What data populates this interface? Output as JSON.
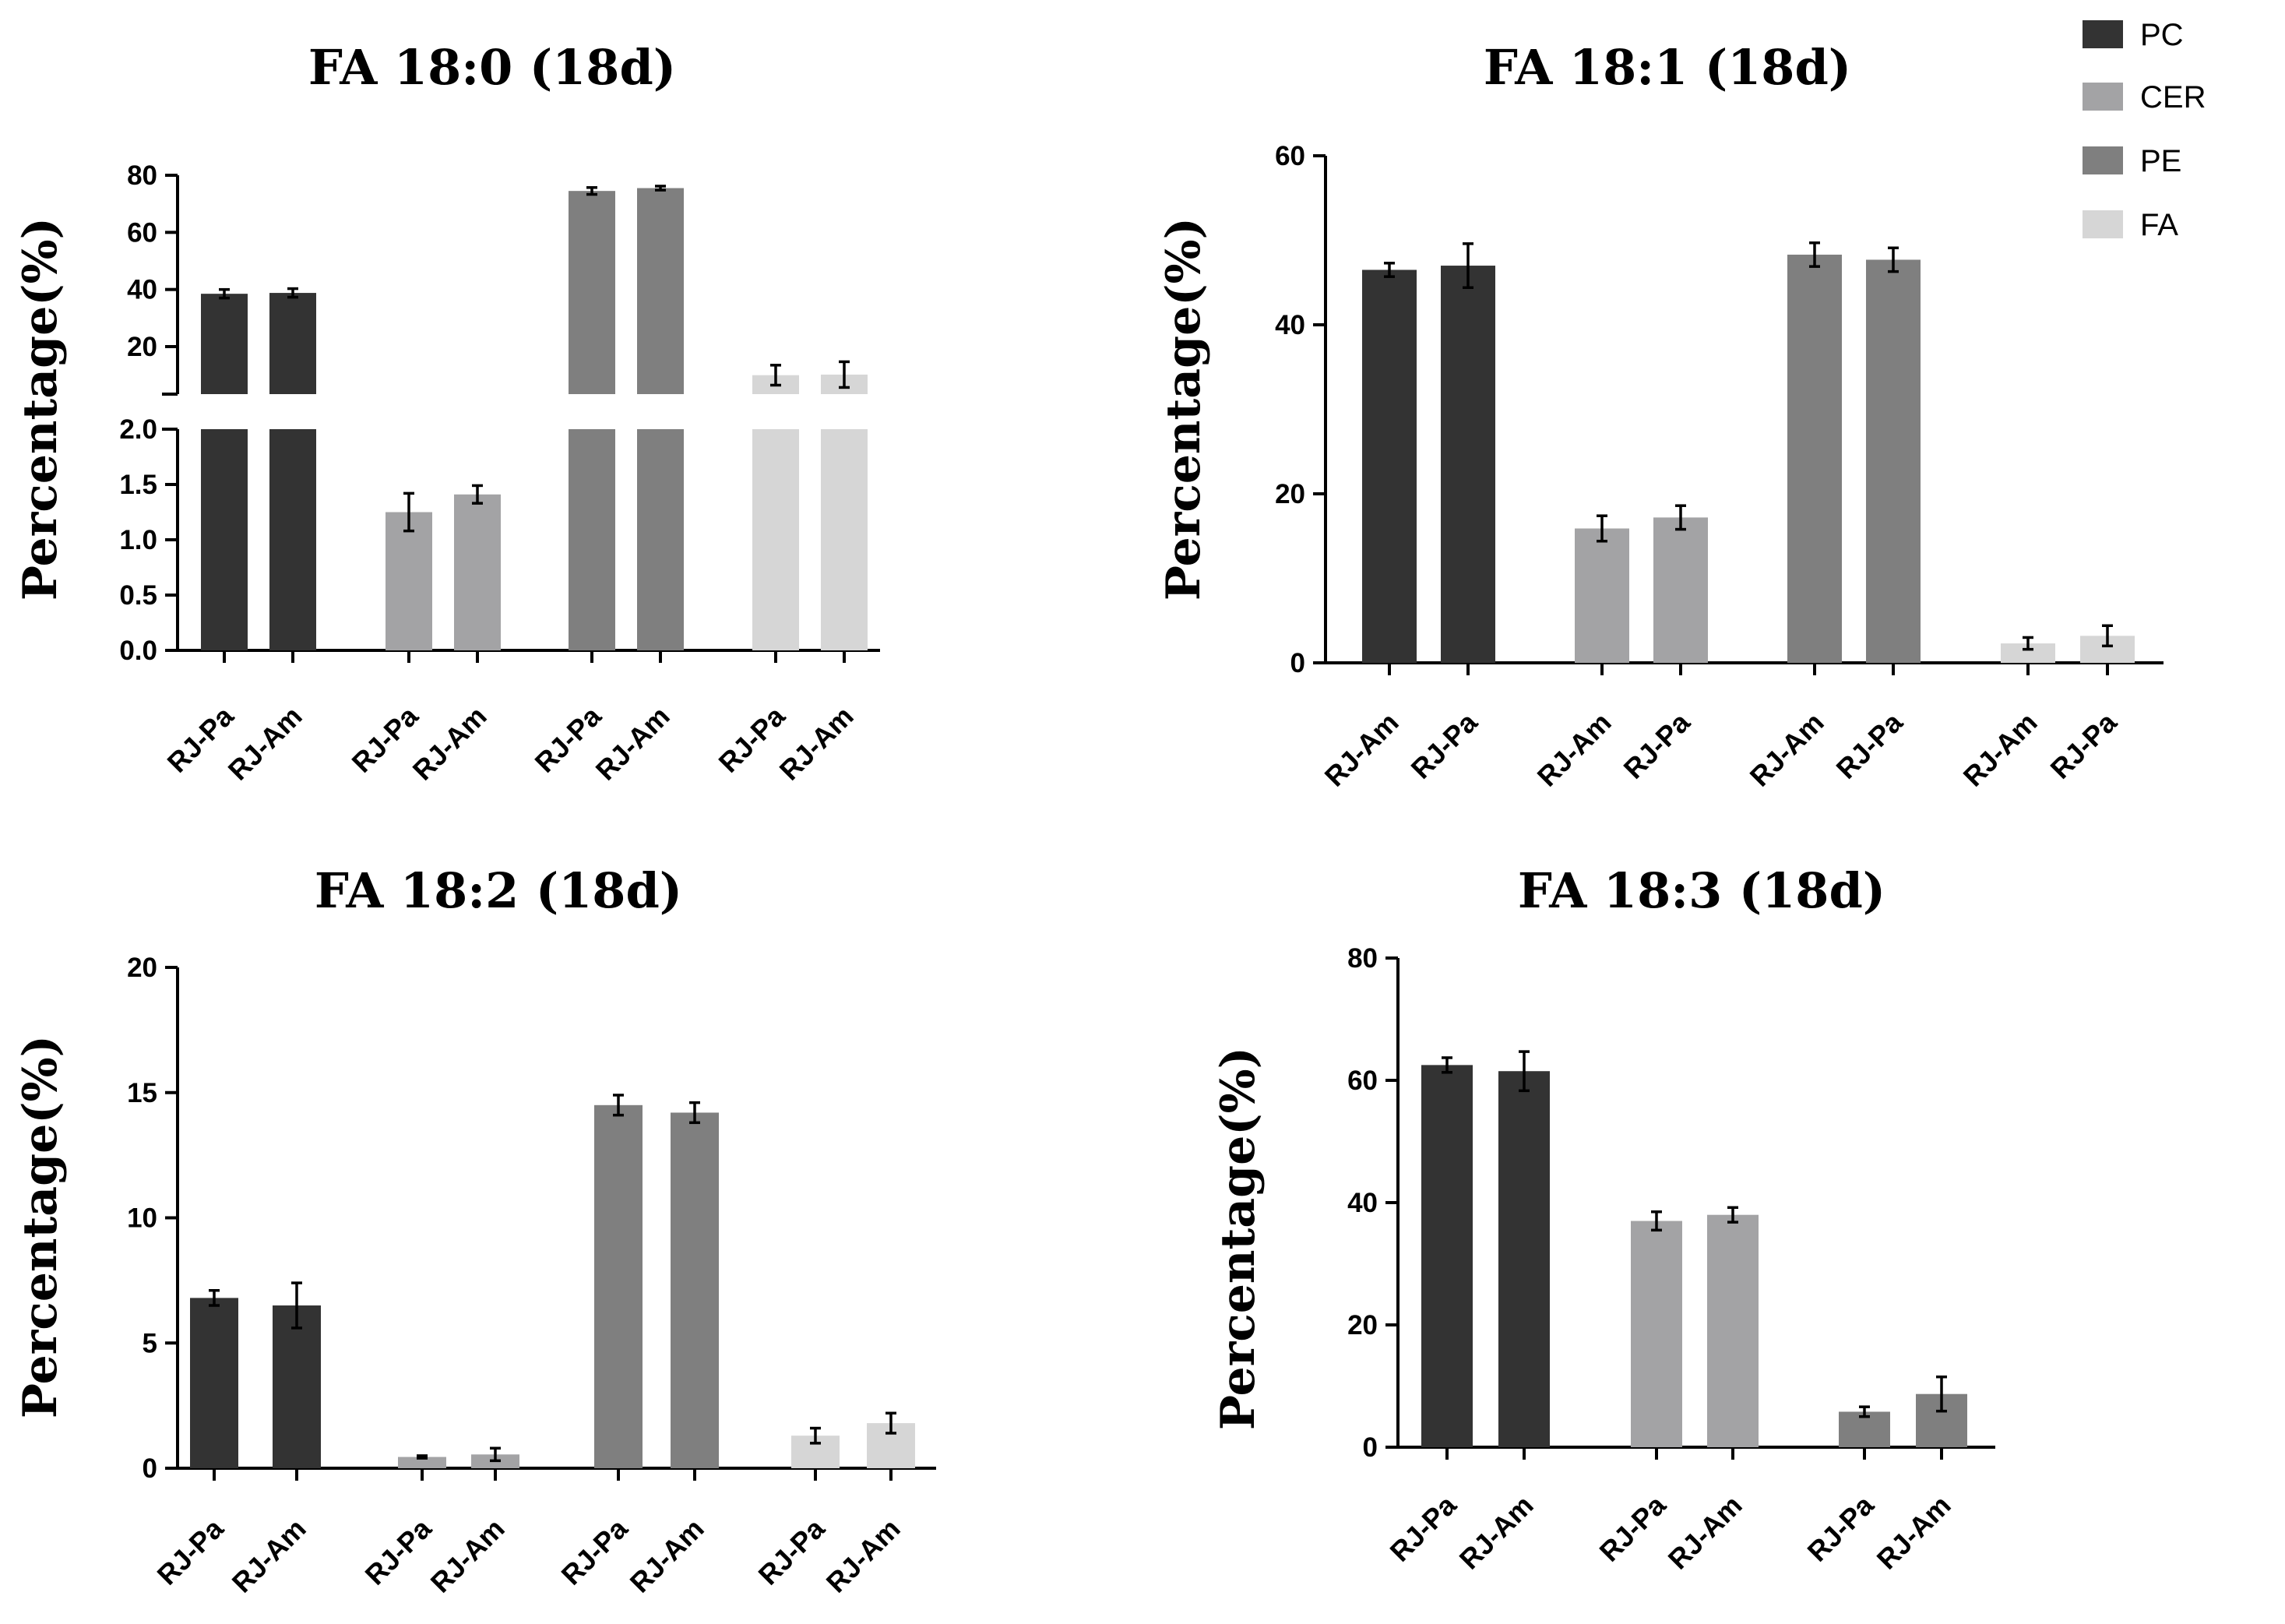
{
  "legend": [
    {
      "name": "PC",
      "color": "#333333"
    },
    {
      "name": "CER",
      "color": "#a3a3a5"
    },
    {
      "name": "PE",
      "color": "#7f7f7f"
    },
    {
      "name": "FA",
      "color": "#d6d6d6"
    }
  ],
  "chart_data": [
    {
      "type": "bar",
      "title": "FA 18:0 (18d)",
      "ylabel": "Percentage(%)",
      "xlabel": "",
      "broken_axis": true,
      "lower_ylim": [
        0,
        2.0
      ],
      "upper_ylim": [
        0,
        80
      ],
      "lower_ticks": [
        "0.0",
        "0.5",
        "1.0",
        "1.5",
        "2.0"
      ],
      "upper_ticks": [
        "20",
        "40",
        "60",
        "80"
      ],
      "groups": [
        {
          "series": "PC",
          "bars": [
            {
              "label": "RJ-Pa",
              "value": 38.5,
              "error": 1.5
            },
            {
              "label": "RJ-Am",
              "value": 38.8,
              "error": 1.5
            }
          ]
        },
        {
          "series": "CER",
          "bars": [
            {
              "label": "RJ-Pa",
              "value": 1.25,
              "error": 0.17
            },
            {
              "label": "RJ-Am",
              "value": 1.41,
              "error": 0.08
            }
          ]
        },
        {
          "series": "PE",
          "bars": [
            {
              "label": "RJ-Pa",
              "value": 74.5,
              "error": 1.2
            },
            {
              "label": "RJ-Am",
              "value": 75.5,
              "error": 0.7
            }
          ]
        },
        {
          "series": "FA",
          "bars": [
            {
              "label": "RJ-Pa",
              "value": 10.0,
              "error": 3.5
            },
            {
              "label": "RJ-Am",
              "value": 10.2,
              "error": 4.5
            }
          ]
        }
      ]
    },
    {
      "type": "bar",
      "title": "FA 18:1 (18d)",
      "ylabel": "Percentage(%)",
      "xlabel": "",
      "ylim": [
        0,
        60
      ],
      "ticks": [
        "0",
        "20",
        "40",
        "60"
      ],
      "groups": [
        {
          "series": "PC",
          "bars": [
            {
              "label": "RJ-Am",
              "value": 46.5,
              "error": 0.8
            },
            {
              "label": "RJ-Pa",
              "value": 47.0,
              "error": 2.6
            }
          ]
        },
        {
          "series": "CER",
          "bars": [
            {
              "label": "RJ-Am",
              "value": 15.9,
              "error": 1.5
            },
            {
              "label": "RJ-Pa",
              "value": 17.2,
              "error": 1.4
            }
          ]
        },
        {
          "series": "PE",
          "bars": [
            {
              "label": "RJ-Am",
              "value": 48.3,
              "error": 1.4
            },
            {
              "label": "RJ-Pa",
              "value": 47.7,
              "error": 1.4
            }
          ]
        },
        {
          "series": "FA",
          "bars": [
            {
              "label": "RJ-Am",
              "value": 2.3,
              "error": 0.7
            },
            {
              "label": "RJ-Pa",
              "value": 3.2,
              "error": 1.2
            }
          ]
        }
      ]
    },
    {
      "type": "bar",
      "title": "FA 18:2 (18d)",
      "ylabel": "Percentage(%)",
      "xlabel": "",
      "ylim": [
        0,
        20
      ],
      "ticks": [
        "0",
        "5",
        "10",
        "15",
        "20"
      ],
      "groups": [
        {
          "series": "PC",
          "bars": [
            {
              "label": "RJ-Pa",
              "value": 6.8,
              "error": 0.3
            },
            {
              "label": "RJ-Am",
              "value": 6.5,
              "error": 0.9
            }
          ]
        },
        {
          "series": "CER",
          "bars": [
            {
              "label": "RJ-Pa",
              "value": 0.45,
              "error": 0.05
            },
            {
              "label": "RJ-Am",
              "value": 0.55,
              "error": 0.25
            }
          ]
        },
        {
          "series": "PE",
          "bars": [
            {
              "label": "RJ-Pa",
              "value": 14.5,
              "error": 0.4
            },
            {
              "label": "RJ-Am",
              "value": 14.2,
              "error": 0.4
            }
          ]
        },
        {
          "series": "FA",
          "bars": [
            {
              "label": "RJ-Pa",
              "value": 1.3,
              "error": 0.3
            },
            {
              "label": "RJ-Am",
              "value": 1.8,
              "error": 0.4
            }
          ]
        }
      ]
    },
    {
      "type": "bar",
      "title": "FA 18:3 (18d)",
      "ylabel": "Percentage(%)",
      "xlabel": "",
      "ylim": [
        0,
        80
      ],
      "ticks": [
        "0",
        "20",
        "40",
        "60",
        "80"
      ],
      "groups": [
        {
          "series": "PC",
          "bars": [
            {
              "label": "RJ-Pa",
              "value": 62.5,
              "error": 1.2
            },
            {
              "label": "RJ-Am",
              "value": 61.5,
              "error": 3.2
            }
          ]
        },
        {
          "series": "CER",
          "bars": [
            {
              "label": "RJ-Pa",
              "value": 37.0,
              "error": 1.5
            },
            {
              "label": "RJ-Am",
              "value": 38.0,
              "error": 1.2
            }
          ]
        },
        {
          "series": "PE",
          "bars": [
            {
              "label": "RJ-Pa",
              "value": 5.8,
              "error": 0.8
            },
            {
              "label": "RJ-Am",
              "value": 8.7,
              "error": 2.8
            }
          ]
        }
      ]
    }
  ]
}
